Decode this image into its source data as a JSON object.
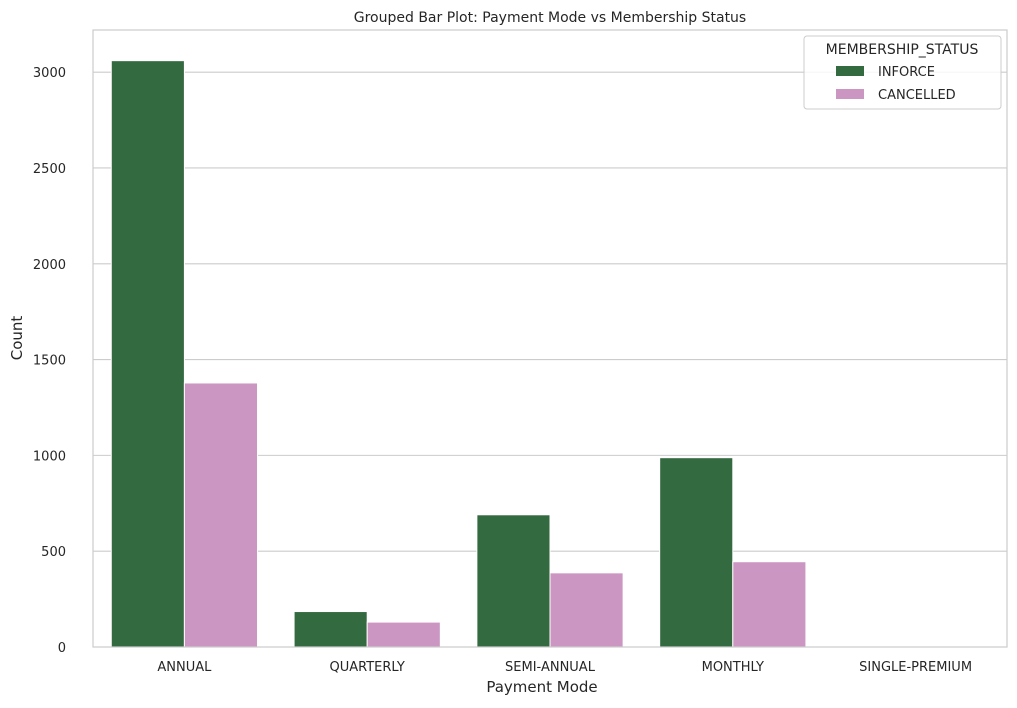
{
  "chart_data": {
    "type": "bar",
    "title": "Grouped Bar Plot: Payment Mode vs Membership Status",
    "xlabel": "Payment Mode",
    "ylabel": "Count",
    "categories": [
      "ANNUAL",
      "QUARTERLY",
      "SEMI-ANNUAL",
      "MONTHLY",
      "SINGLE-PREMIUM"
    ],
    "series": [
      {
        "name": "INFORCE",
        "color": "#336a3f",
        "values": [
          3060,
          185,
          690,
          988,
          0
        ]
      },
      {
        "name": "CANCELLED",
        "color": "#cc96c2",
        "values": [
          1378,
          130,
          387,
          445,
          0
        ]
      }
    ],
    "ylim": [
      0,
      3220
    ],
    "yticks": [
      0,
      500,
      1000,
      1500,
      2000,
      2500,
      3000
    ],
    "grid": true,
    "legend": {
      "title": "MEMBERSHIP_STATUS",
      "placement": "top-right"
    }
  }
}
